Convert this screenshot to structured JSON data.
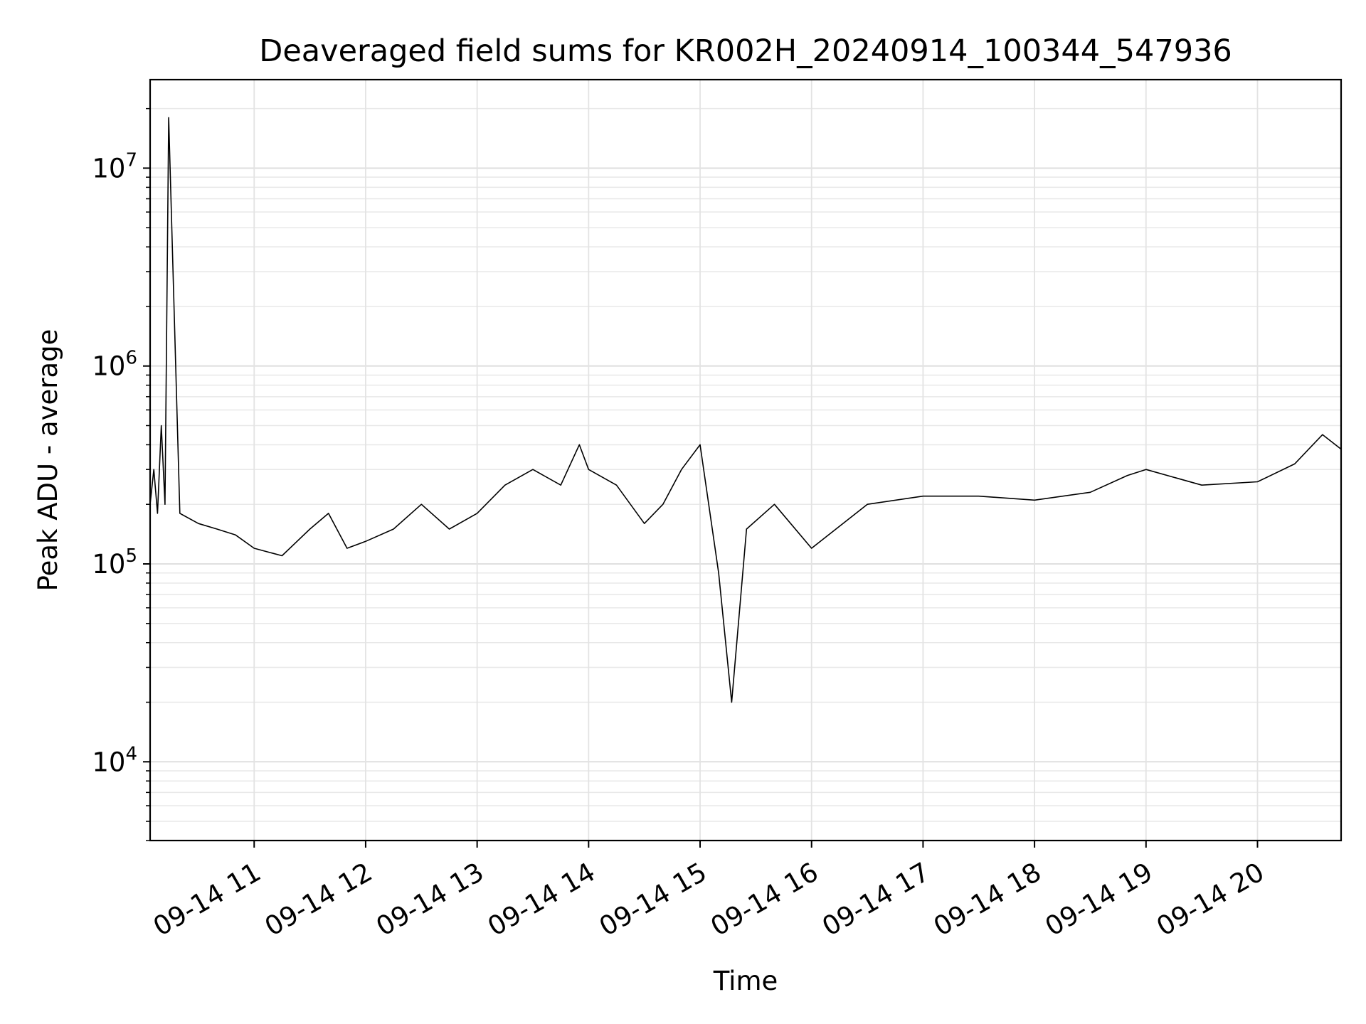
{
  "chart_data": {
    "type": "line",
    "title": "Deaveraged field sums for KR002H_20240914_100344_547936",
    "xlabel": "Time",
    "ylabel": "Peak ADU - average",
    "y_scale": "log",
    "ylim": [
      4000,
      28000000
    ],
    "xlim": [
      "2024-09-14T10:04",
      "2024-09-14T20:45"
    ],
    "grid": true,
    "line_color": "#000000",
    "x_tick_labels": [
      "09-14 11",
      "09-14 12",
      "09-14 13",
      "09-14 14",
      "09-14 15",
      "09-14 16",
      "09-14 17",
      "09-14 18",
      "09-14 19",
      "09-14 20"
    ],
    "x_ticks": [
      "2024-09-14T11:00",
      "2024-09-14T12:00",
      "2024-09-14T13:00",
      "2024-09-14T14:00",
      "2024-09-14T15:00",
      "2024-09-14T16:00",
      "2024-09-14T17:00",
      "2024-09-14T18:00",
      "2024-09-14T19:00",
      "2024-09-14T20:00"
    ],
    "y_tick_values": [
      10000,
      100000,
      1000000,
      10000000
    ],
    "y_tick_labels": [
      {
        "base": "10",
        "exp": "4"
      },
      {
        "base": "10",
        "exp": "5"
      },
      {
        "base": "10",
        "exp": "6"
      },
      {
        "base": "10",
        "exp": "7"
      }
    ],
    "x": [
      "2024-09-14T10:04",
      "2024-09-14T10:06",
      "2024-09-14T10:08",
      "2024-09-14T10:10",
      "2024-09-14T10:12",
      "2024-09-14T10:14",
      "2024-09-14T10:20",
      "2024-09-14T10:30",
      "2024-09-14T10:40",
      "2024-09-14T10:50",
      "2024-09-14T11:00",
      "2024-09-14T11:15",
      "2024-09-14T11:30",
      "2024-09-14T11:40",
      "2024-09-14T11:50",
      "2024-09-14T12:00",
      "2024-09-14T12:15",
      "2024-09-14T12:30",
      "2024-09-14T12:45",
      "2024-09-14T13:00",
      "2024-09-14T13:15",
      "2024-09-14T13:30",
      "2024-09-14T13:45",
      "2024-09-14T13:55",
      "2024-09-14T14:00",
      "2024-09-14T14:15",
      "2024-09-14T14:30",
      "2024-09-14T14:40",
      "2024-09-14T14:50",
      "2024-09-14T15:00",
      "2024-09-14T15:10",
      "2024-09-14T15:17",
      "2024-09-14T15:25",
      "2024-09-14T15:40",
      "2024-09-14T16:00",
      "2024-09-14T16:30",
      "2024-09-14T17:00",
      "2024-09-14T17:30",
      "2024-09-14T18:00",
      "2024-09-14T18:30",
      "2024-09-14T18:50",
      "2024-09-14T19:00",
      "2024-09-14T19:30",
      "2024-09-14T20:00",
      "2024-09-14T20:20",
      "2024-09-14T20:35",
      "2024-09-14T20:45"
    ],
    "y": [
      200000,
      300000,
      180000,
      500000,
      200000,
      18000000,
      180000,
      160000,
      150000,
      140000,
      120000,
      110000,
      150000,
      180000,
      120000,
      130000,
      150000,
      200000,
      150000,
      180000,
      250000,
      300000,
      250000,
      400000,
      300000,
      250000,
      160000,
      200000,
      300000,
      400000,
      90000,
      20000,
      150000,
      200000,
      120000,
      200000,
      220000,
      220000,
      210000,
      230000,
      280000,
      300000,
      250000,
      260000,
      320000,
      450000,
      380000
    ]
  }
}
